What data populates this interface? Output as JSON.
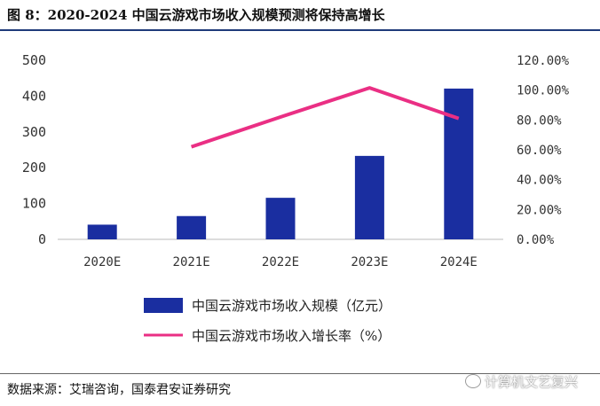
{
  "figure": {
    "title": "图 8：2020-2024 中国云游戏市场收入规模预测将保持高增长",
    "source": "数据来源：艾瑞咨询，国泰君安证券研究",
    "watermark": "计算机文艺复兴",
    "watermark_icon": "wechat-icon"
  },
  "colors": {
    "bar": "#1a2ea0",
    "line": "#ea2f84",
    "rule": "#1f3a7a"
  },
  "chart_data": {
    "type": "bar+line",
    "categories": [
      "2020E",
      "2021E",
      "2022E",
      "2023E",
      "2024E"
    ],
    "series": [
      {
        "name": "中国云游戏市场收入规模（亿元）",
        "kind": "bar",
        "axis": "left",
        "values": [
          41,
          65,
          116,
          233,
          421
        ]
      },
      {
        "name": "中国云游戏市场收入增长率（%）",
        "kind": "line",
        "axis": "right",
        "values": [
          null,
          62.0,
          82.0,
          101.5,
          81.0
        ]
      }
    ],
    "y_left": {
      "min": 0,
      "max": 500,
      "ticks": [
        "0",
        "100",
        "200",
        "300",
        "400",
        "500"
      ]
    },
    "y_right": {
      "min": 0,
      "max": 120,
      "ticks": [
        "0.00%",
        "20.00%",
        "40.00%",
        "60.00%",
        "80.00%",
        "100.00%",
        "120.00%"
      ]
    },
    "legend_position": "bottom",
    "grid": false
  }
}
